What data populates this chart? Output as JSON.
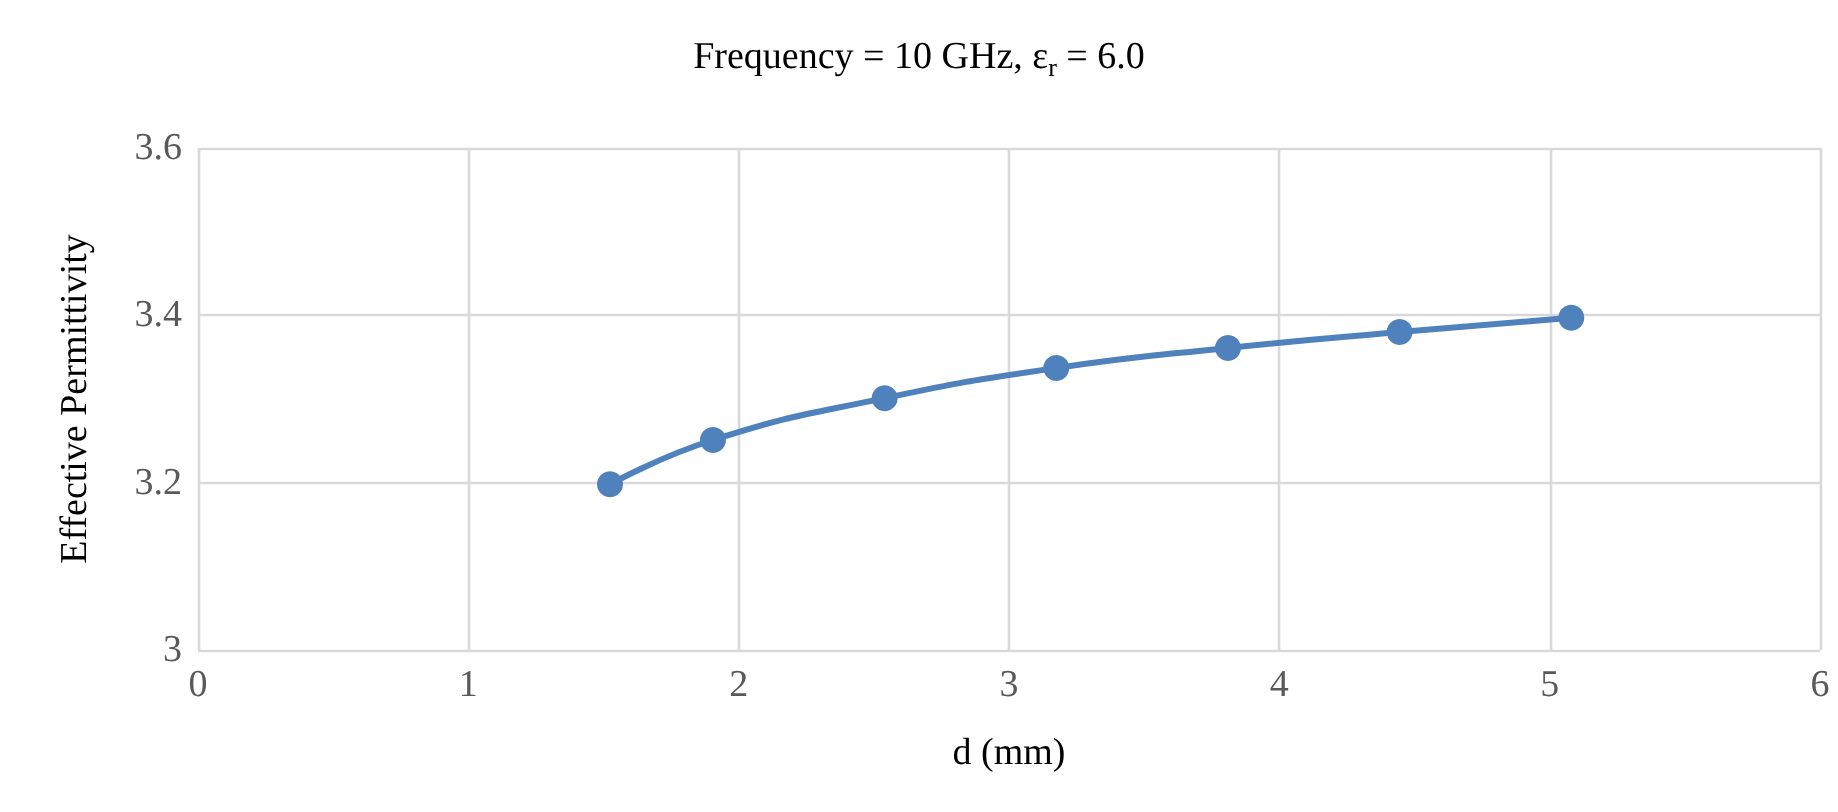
{
  "chart_data": {
    "type": "line",
    "title": "Frequency = 10 GHz, ε$_{r}$ = 6.0",
    "xlabel": "d (mm)",
    "ylabel": "Effective Permittivity",
    "x": [
      1.524,
      1.905,
      2.54,
      3.175,
      3.81,
      4.445,
      5.08
    ],
    "series": [
      {
        "color": "#4f81bd",
        "values": [
          3.198,
          3.251,
          3.301,
          3.337,
          3.361,
          3.38,
          3.397
        ]
      }
    ],
    "xlim": [
      0,
      6
    ],
    "xticks": [
      0,
      1,
      2,
      3,
      4,
      5,
      6
    ],
    "ylim": [
      3,
      3.6
    ],
    "yticks": [
      3,
      3.2,
      3.4,
      3.6
    ],
    "grid": true,
    "marker": "circle",
    "line_style": "solid"
  }
}
